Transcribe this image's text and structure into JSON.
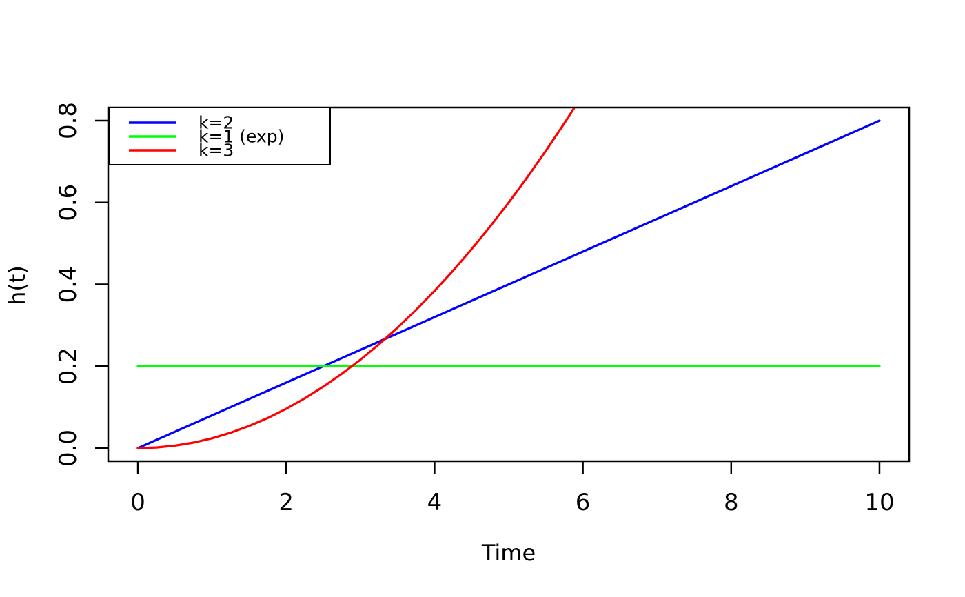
{
  "figure": {
    "background": "#FFFFFF",
    "border_color": "#000000"
  },
  "chart_data": {
    "type": "line",
    "title": "",
    "xlabel": "Time",
    "ylabel": "h(t)",
    "xlim": [
      0,
      10
    ],
    "ylim": [
      0,
      0.8
    ],
    "x_ticks": [
      {
        "value": 0,
        "label": "0"
      },
      {
        "value": 2,
        "label": "2"
      },
      {
        "value": 4,
        "label": "4"
      },
      {
        "value": 6,
        "label": "6"
      },
      {
        "value": 8,
        "label": "8"
      },
      {
        "value": 10,
        "label": "10"
      }
    ],
    "y_ticks": [
      {
        "value": 0.0,
        "label": "0.0"
      },
      {
        "value": 0.2,
        "label": "0.2"
      },
      {
        "value": 0.4,
        "label": "0.4"
      },
      {
        "value": 0.6,
        "label": "0.6"
      },
      {
        "value": 0.8,
        "label": "0.8"
      }
    ],
    "grid": false,
    "legend": {
      "position": "topleft",
      "entries": [
        {
          "label": "k=2",
          "color": "#0000FF"
        },
        {
          "label": "k=1 (exp)",
          "color": "#00FF00"
        },
        {
          "label": "k=3",
          "color": "#FF0000"
        }
      ]
    },
    "series": [
      {
        "name": "k=2",
        "color": "#0000FF",
        "x": [
          0,
          1,
          2,
          3,
          4,
          5,
          6,
          7,
          8,
          9,
          10
        ],
        "y": [
          0,
          0.08,
          0.16,
          0.24,
          0.32,
          0.4,
          0.48,
          0.56,
          0.64,
          0.72,
          0.8
        ]
      },
      {
        "name": "k=1 (exp)",
        "color": "#00FF00",
        "x": [
          0,
          10
        ],
        "y": [
          0.2,
          0.2
        ]
      },
      {
        "name": "k=3",
        "color": "#FF0000",
        "x": [
          0,
          0.25,
          0.5,
          0.75,
          1,
          1.25,
          1.5,
          1.75,
          2,
          2.25,
          2.5,
          2.75,
          3,
          3.25,
          3.5,
          3.75,
          4,
          4.25,
          4.5,
          4.75,
          5,
          5.25,
          5.5,
          5.75,
          6
        ],
        "y": [
          0,
          0.0015,
          0.006,
          0.0135,
          0.024,
          0.0375,
          0.054,
          0.0735,
          0.096,
          0.1215,
          0.15,
          0.1815,
          0.216,
          0.2535,
          0.294,
          0.3375,
          0.384,
          0.4335,
          0.486,
          0.5415,
          0.6,
          0.6615,
          0.726,
          0.7935,
          0.864
        ]
      }
    ]
  }
}
